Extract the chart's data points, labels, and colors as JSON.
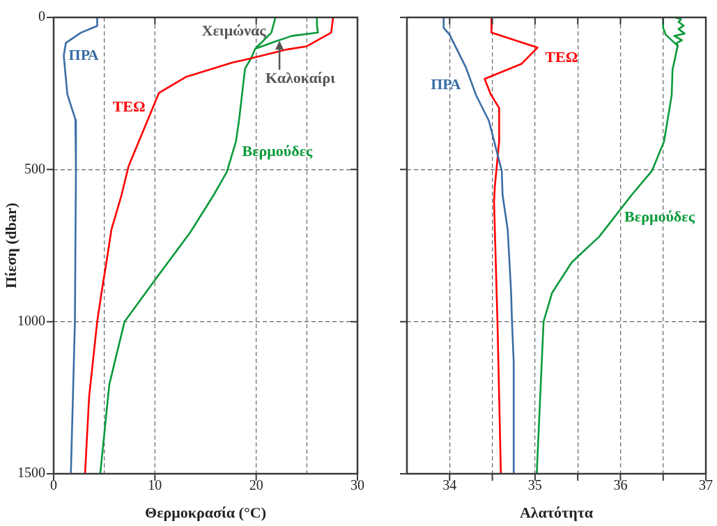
{
  "chart_data": [
    {
      "type": "line",
      "xlabel": "Θερμοκρασία (°C)",
      "ylabel": "Πίεση (dbar)",
      "xlim": [
        0,
        30
      ],
      "xticks": [
        0,
        10,
        20,
        30
      ],
      "ylim": [
        1500,
        0
      ],
      "yticks": [
        0,
        500,
        1000,
        1500
      ],
      "grid": "y",
      "line_style": "solid",
      "marker": "none",
      "ref_lines": [
        {
          "axis": "x",
          "value": 5,
          "line_style": "dashed"
        },
        {
          "axis": "x",
          "value": 10,
          "line_style": "dashed"
        },
        {
          "axis": "x",
          "value": 20,
          "line_style": "dashed"
        },
        {
          "axis": "x",
          "value": 25,
          "line_style": "dashed"
        }
      ],
      "series": [
        {
          "name": "ΠΡΑ",
          "color": "#3a6ea5",
          "x": [
            4.3,
            4.3,
            2.7,
            1.2,
            1.0,
            1.35,
            2.15,
            2.2,
            2.1,
            1.7
          ],
          "values": [
            0,
            28,
            50,
            84,
            126,
            252,
            336,
            500,
            1000,
            1500
          ]
        },
        {
          "name": "ΤΕΩ",
          "color": "#ff0000",
          "x": [
            27.6,
            27.4,
            25.0,
            23.1,
            19.2,
            17.6,
            13.1,
            10.4,
            7.4,
            6.7,
            5.7,
            5.25,
            4.8,
            4.3,
            3.5,
            3.1
          ],
          "values": [
            0,
            50,
            95,
            105,
            137,
            149,
            195,
            248,
            489,
            584,
            698,
            797,
            889,
            1000,
            1248,
            1500
          ]
        },
        {
          "name": "Βερμούδες",
          "color": "#0a9a3a",
          "x": [
            21.9,
            21.5,
            19.9,
            19.5,
            18.9,
            18.3,
            18.0,
            17.1,
            15.8,
            13.5,
            10.1,
            7.0,
            5.5,
            4.6
          ],
          "values": [
            0,
            50,
            103,
            134,
            168,
            340,
            408,
            508,
            584,
            706,
            859,
            1000,
            1206,
            1500
          ]
        },
        {
          "color": "#0a9a3a",
          "x": [
            26.0,
            26.0,
            26.1,
            23.5,
            21.8,
            19.9
          ],
          "values": [
            0,
            27,
            50,
            61,
            80,
            103
          ]
        }
      ],
      "annotations": [
        "Χειμώνας",
        {
          "text": "Καλοκαίρι",
          "x": 22.3,
          "y": 76
        }
      ]
    },
    {
      "type": "line",
      "xlabel": "Αλατότητα",
      "xlim": [
        33.5,
        37
      ],
      "xticks": [
        34,
        {
          "value": 34.5,
          "label": null
        },
        35,
        {
          "value": 35.5,
          "label": null
        },
        36,
        {
          "value": 36.5,
          "label": null
        },
        37
      ],
      "ylim": [
        1500,
        0
      ],
      "yticks": [
        0,
        500,
        1000,
        1500
      ],
      "tick_labels": "x",
      "grid": true,
      "line_style": "solid",
      "marker": "none",
      "series": [
        {
          "name": "ΠΡΑ",
          "color": "#3a6ea5",
          "x": [
            33.93,
            33.93,
            34.0,
            34.19,
            34.31,
            34.46,
            34.61,
            34.62,
            34.68,
            34.72,
            34.73,
            34.75,
            34.75
          ],
          "values": [
            0,
            34,
            57,
            164,
            256,
            340,
            504,
            584,
            698,
            905,
            1000,
            1133,
            1500
          ]
        },
        {
          "name": "ΤΕΩ",
          "color": "#ff0000",
          "x": [
            34.49,
            34.49,
            35.03,
            34.84,
            34.41,
            34.48,
            34.58,
            34.58,
            34.53,
            34.52,
            34.56,
            34.6
          ],
          "values": [
            0,
            50,
            99,
            153,
            202,
            252,
            298,
            408,
            553,
            607,
            1000,
            1500
          ]
        },
        {
          "name": "Βερμούδες",
          "color": "#0a9a3a",
          "x": [
            36.5,
            36.5,
            36.53,
            36.67,
            36.61,
            36.6,
            36.51,
            36.37,
            36.13,
            35.75,
            35.43,
            35.2,
            35.1,
            35.02
          ],
          "values": [
            0,
            34,
            57,
            93,
            172,
            256,
            408,
            504,
            584,
            721,
            805,
            905,
            1000,
            1500
          ]
        },
        {
          "color": "#0a9a3a",
          "x": [
            36.64,
            36.71,
            36.68,
            36.74,
            36.68,
            36.75,
            36.63,
            36.72,
            36.66,
            36.67
          ],
          "values": [
            0,
            6,
            15,
            27,
            38,
            53,
            61,
            75,
            84,
            93
          ]
        }
      ]
    }
  ]
}
